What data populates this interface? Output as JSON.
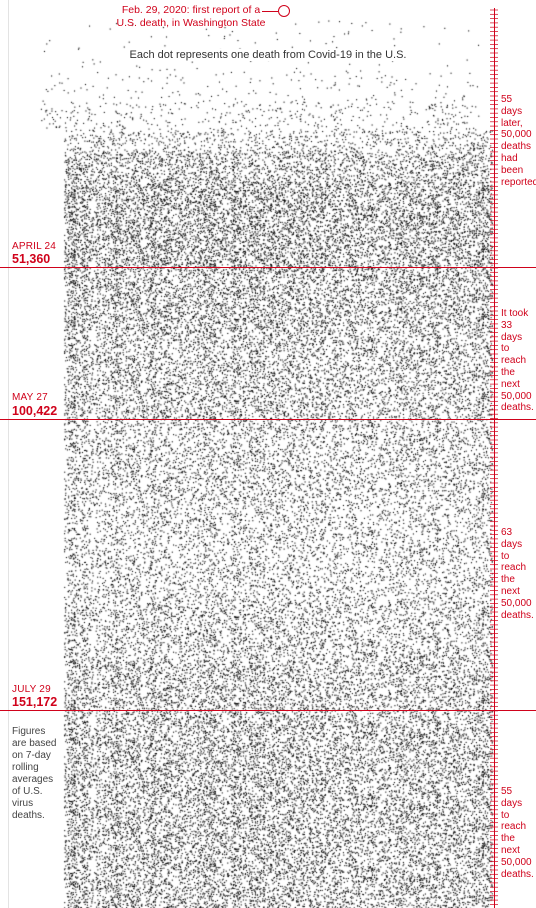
{
  "colors": {
    "accent": "#d0021b",
    "dot": "#000000",
    "text": "#222222"
  },
  "header": {
    "first_death_note_line1": "Feb. 29, 2020: first report of a",
    "first_death_note_line2": "U.S. death, in Washington State",
    "subtitle": "Each dot represents one death from Covid-19 in the U.S."
  },
  "milestones": [
    {
      "date": "APRIL 24",
      "count": "51,360"
    },
    {
      "date": "MAY 27",
      "count": "100,422"
    },
    {
      "date": "JULY 29",
      "count": "151,172"
    }
  ],
  "annotations": [
    {
      "text": "55 days\nlater,\n50,000\ndeaths\nhad\nbeen\nreported"
    },
    {
      "text": "It took\n33 days\nto reach\nthe next\n50,000\ndeaths."
    },
    {
      "text": "63 days\nto reach\nthe next\n50,000\ndeaths."
    },
    {
      "text": "55 days\nto reach\nthe next\n50,000\ndeaths."
    }
  ],
  "footnote": "Figures\nare based\non 7-day\nrolling\naverages\nof U.S.\nvirus\ndeaths.",
  "chart_data": {
    "type": "scatter",
    "title": "",
    "xlabel": "",
    "ylabel": "",
    "unit": "one dot = one death",
    "start_date": "Feb. 29, 2020",
    "milestones": [
      {
        "date": "April 24",
        "cumulative_deaths": 51360,
        "days_from_previous": 55
      },
      {
        "date": "May 27",
        "cumulative_deaths": 100422,
        "days_from_previous": 33
      },
      {
        "date": "July 29",
        "cumulative_deaths": 151172,
        "days_from_previous": 63
      }
    ],
    "final_segment_days_per_50000": 55,
    "axis": "vertical timeline with daily tick marks on the right"
  }
}
